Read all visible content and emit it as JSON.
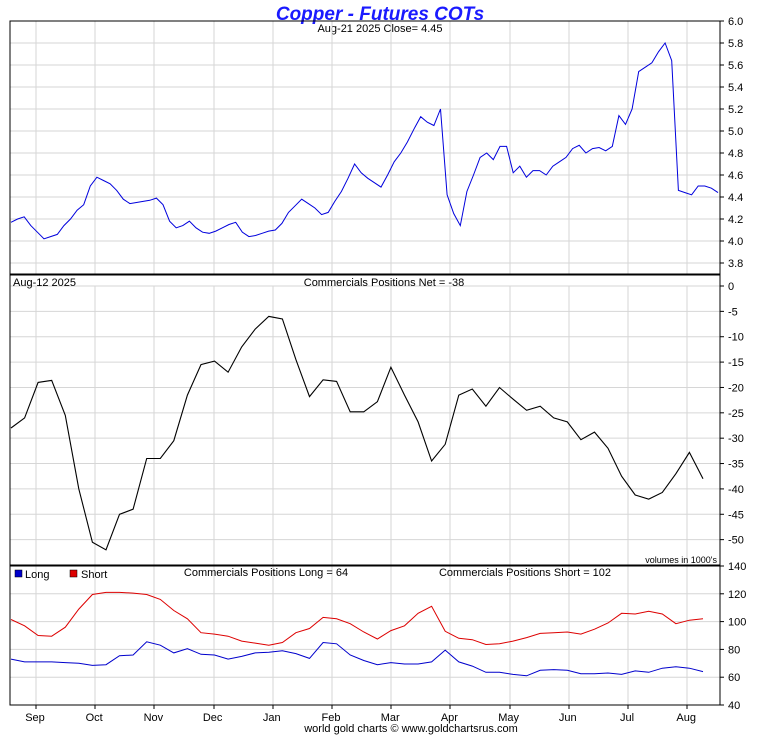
{
  "header": {
    "title": "Copper - Futures COTs",
    "subtitle": "Aug-21  2025   Close= 4.45",
    "credit": "world gold charts © www.goldchartsrus.com"
  },
  "panel2": {
    "date_label": "Aug-12  2025",
    "net_label": "Commercials Positions Net = -38",
    "units_note": "volumes in 1000's"
  },
  "panel3": {
    "legend_long": "Long",
    "legend_short": "Short",
    "long_label": "Commercials Positions Long = 64",
    "short_label": "Commercials Positions Short = 102"
  },
  "colors": {
    "price": "#0000dd",
    "net": "#000000",
    "long": "#0000cc",
    "short": "#dd0000",
    "title": "#1a1aff"
  },
  "chart_data": [
    {
      "type": "line",
      "series": [
        {
          "name": "Copper",
          "values": [
            [
              0,
              4.17
            ],
            [
              1,
              4.2
            ],
            [
              2,
              4.22
            ],
            [
              3,
              4.14
            ],
            [
              4,
              4.08
            ],
            [
              5,
              4.02
            ],
            [
              6,
              4.04
            ],
            [
              7,
              4.06
            ],
            [
              8,
              4.14
            ],
            [
              9,
              4.2
            ],
            [
              10,
              4.28
            ],
            [
              11,
              4.33
            ],
            [
              12,
              4.5
            ],
            [
              13,
              4.58
            ],
            [
              14,
              4.55
            ],
            [
              15,
              4.52
            ],
            [
              16,
              4.46
            ],
            [
              17,
              4.38
            ],
            [
              18,
              4.34
            ],
            [
              19,
              4.35
            ],
            [
              20,
              4.36
            ],
            [
              21,
              4.37
            ],
            [
              22,
              4.39
            ],
            [
              23,
              4.33
            ],
            [
              24,
              4.18
            ],
            [
              25,
              4.12
            ],
            [
              26,
              4.14
            ],
            [
              27,
              4.18
            ],
            [
              28,
              4.12
            ],
            [
              29,
              4.08
            ],
            [
              30,
              4.07
            ],
            [
              31,
              4.09
            ],
            [
              32,
              4.12
            ],
            [
              33,
              4.15
            ],
            [
              34,
              4.17
            ],
            [
              35,
              4.08
            ],
            [
              36,
              4.04
            ],
            [
              37,
              4.05
            ],
            [
              38,
              4.07
            ],
            [
              39,
              4.09
            ],
            [
              40,
              4.1
            ],
            [
              41,
              4.16
            ],
            [
              42,
              4.26
            ],
            [
              43,
              4.32
            ],
            [
              44,
              4.38
            ],
            [
              45,
              4.34
            ],
            [
              46,
              4.3
            ],
            [
              47,
              4.24
            ],
            [
              48,
              4.26
            ],
            [
              49,
              4.36
            ],
            [
              50,
              4.45
            ],
            [
              51,
              4.57
            ],
            [
              52,
              4.7
            ],
            [
              53,
              4.62
            ],
            [
              54,
              4.57
            ],
            [
              55,
              4.53
            ],
            [
              56,
              4.49
            ],
            [
              57,
              4.6
            ],
            [
              58,
              4.72
            ],
            [
              59,
              4.8
            ],
            [
              60,
              4.9
            ],
            [
              61,
              5.02
            ],
            [
              62,
              5.13
            ],
            [
              63,
              5.08
            ],
            [
              64,
              5.05
            ],
            [
              65,
              5.2
            ],
            [
              66,
              4.42
            ],
            [
              67,
              4.25
            ],
            [
              68,
              4.14
            ],
            [
              69,
              4.45
            ],
            [
              70,
              4.6
            ],
            [
              71,
              4.76
            ],
            [
              72,
              4.8
            ],
            [
              73,
              4.74
            ],
            [
              74,
              4.86
            ],
            [
              75,
              4.86
            ],
            [
              76,
              4.62
            ],
            [
              77,
              4.68
            ],
            [
              78,
              4.58
            ],
            [
              79,
              4.64
            ],
            [
              80,
              4.64
            ],
            [
              81,
              4.6
            ],
            [
              82,
              4.68
            ],
            [
              83,
              4.72
            ],
            [
              84,
              4.76
            ],
            [
              85,
              4.84
            ],
            [
              86,
              4.87
            ],
            [
              87,
              4.8
            ],
            [
              88,
              4.84
            ],
            [
              89,
              4.85
            ],
            [
              90,
              4.82
            ],
            [
              91,
              4.86
            ],
            [
              92,
              5.14
            ],
            [
              93,
              5.06
            ],
            [
              94,
              5.2
            ],
            [
              95,
              5.54
            ],
            [
              96,
              5.58
            ],
            [
              97,
              5.62
            ],
            [
              98,
              5.72
            ],
            [
              99,
              5.8
            ],
            [
              100,
              5.64
            ],
            [
              101,
              4.46
            ],
            [
              102,
              4.44
            ],
            [
              103,
              4.42
            ],
            [
              104,
              4.5
            ],
            [
              105,
              4.5
            ],
            [
              106,
              4.48
            ],
            [
              107,
              4.44
            ]
          ]
        }
      ],
      "ylim": [
        3.7,
        6.0
      ],
      "yticks": [
        "3.8",
        "4.0",
        "4.2",
        "4.4",
        "4.6",
        "4.8",
        "5.0",
        "5.2",
        "5.4",
        "5.6",
        "5.8",
        "6.0"
      ]
    },
    {
      "type": "line",
      "series": [
        {
          "name": "Net",
          "values": [
            [
              0,
              -28
            ],
            [
              1,
              -26
            ],
            [
              2,
              -19
            ],
            [
              3,
              -18.6
            ],
            [
              4,
              -25.5
            ],
            [
              5,
              -40
            ],
            [
              6,
              -50.5
            ],
            [
              7,
              -52
            ],
            [
              8,
              -45
            ],
            [
              9,
              -44
            ],
            [
              10,
              -34
            ],
            [
              11,
              -34
            ],
            [
              12,
              -30.5
            ],
            [
              13,
              -21.5
            ],
            [
              14,
              -15.5
            ],
            [
              15,
              -14.8
            ],
            [
              16,
              -17
            ],
            [
              17,
              -12
            ],
            [
              18,
              -8.5
            ],
            [
              19,
              -6
            ],
            [
              20,
              -6.5
            ],
            [
              21,
              -14.5
            ],
            [
              22,
              -21.8
            ],
            [
              23,
              -18.5
            ],
            [
              24,
              -18.8
            ],
            [
              25,
              -24.8
            ],
            [
              26,
              -24.8
            ],
            [
              27,
              -22.8
            ],
            [
              28,
              -16
            ],
            [
              29,
              -21.5
            ],
            [
              30,
              -26.8
            ],
            [
              31,
              -34.5
            ],
            [
              32,
              -31.2
            ],
            [
              33,
              -21.5
            ],
            [
              34,
              -20.3
            ],
            [
              35,
              -23.7
            ],
            [
              36,
              -20
            ],
            [
              37,
              -22.3
            ],
            [
              38,
              -24.5
            ],
            [
              39,
              -23.7
            ],
            [
              40,
              -26
            ],
            [
              41,
              -26.8
            ],
            [
              42,
              -30.3
            ],
            [
              43,
              -28.8
            ],
            [
              44,
              -32
            ],
            [
              45,
              -37.5
            ],
            [
              46,
              -41.2
            ],
            [
              47,
              -42
            ],
            [
              48,
              -40.7
            ],
            [
              49,
              -37
            ],
            [
              50,
              -32.8
            ],
            [
              51,
              -38
            ]
          ]
        }
      ],
      "ylim": [
        -55,
        0
      ],
      "yticks": [
        "0",
        "-5",
        "-10",
        "-15",
        "-20",
        "-25",
        "-30",
        "-35",
        "-40",
        "-45",
        "-50"
      ]
    },
    {
      "type": "line",
      "categories": [
        "Sep",
        "Oct",
        "Nov",
        "Dec",
        "Jan",
        "Feb",
        "Mar",
        "Apr",
        "May",
        "Jun",
        "Jul",
        "Aug"
      ],
      "series": [
        {
          "name": "Long",
          "values": [
            [
              0,
              73
            ],
            [
              1,
              71
            ],
            [
              2,
              71
            ],
            [
              3,
              71
            ],
            [
              4,
              70.5
            ],
            [
              5,
              70
            ],
            [
              6,
              68.5
            ],
            [
              7,
              69
            ],
            [
              8,
              75.5
            ],
            [
              9,
              76
            ],
            [
              10,
              85.5
            ],
            [
              11,
              83
            ],
            [
              12,
              77.5
            ],
            [
              13,
              80.5
            ],
            [
              14,
              76.5
            ],
            [
              15,
              76
            ],
            [
              16,
              73
            ],
            [
              17,
              75
            ],
            [
              18,
              77.5
            ],
            [
              19,
              78
            ],
            [
              20,
              79
            ],
            [
              21,
              77
            ],
            [
              22,
              73.5
            ],
            [
              23,
              85
            ],
            [
              24,
              84
            ],
            [
              25,
              76
            ],
            [
              26,
              72
            ],
            [
              27,
              69
            ],
            [
              28,
              70.5
            ],
            [
              29,
              69.5
            ],
            [
              30,
              69.5
            ],
            [
              31,
              71
            ],
            [
              32,
              79.5
            ],
            [
              33,
              71
            ],
            [
              34,
              68
            ],
            [
              35,
              63.5
            ],
            [
              36,
              63.5
            ],
            [
              37,
              62
            ],
            [
              38,
              61
            ],
            [
              39,
              65
            ],
            [
              40,
              65.5
            ],
            [
              41,
              65
            ],
            [
              42,
              62.5
            ],
            [
              43,
              62.5
            ],
            [
              44,
              63
            ],
            [
              45,
              62
            ],
            [
              46,
              64.5
            ],
            [
              47,
              63.5
            ],
            [
              48,
              66.5
            ],
            [
              49,
              67.5
            ],
            [
              50,
              66.5
            ],
            [
              51,
              64
            ]
          ]
        },
        {
          "name": "Short",
          "values": [
            [
              0,
              101.5
            ],
            [
              1,
              97
            ],
            [
              2,
              90
            ],
            [
              3,
              89.5
            ],
            [
              4,
              96
            ],
            [
              5,
              109
            ],
            [
              6,
              119.5
            ],
            [
              7,
              121
            ],
            [
              8,
              121
            ],
            [
              9,
              120.5
            ],
            [
              10,
              119.5
            ],
            [
              11,
              116
            ],
            [
              12,
              108
            ],
            [
              13,
              102
            ],
            [
              14,
              92
            ],
            [
              15,
              91
            ],
            [
              16,
              89.5
            ],
            [
              17,
              86
            ],
            [
              18,
              84.5
            ],
            [
              19,
              83
            ],
            [
              20,
              85
            ],
            [
              21,
              92
            ],
            [
              22,
              95
            ],
            [
              23,
              103
            ],
            [
              24,
              102
            ],
            [
              25,
              98.5
            ],
            [
              26,
              92.5
            ],
            [
              27,
              87.5
            ],
            [
              28,
              93.5
            ],
            [
              29,
              97
            ],
            [
              30,
              106
            ],
            [
              31,
              111
            ],
            [
              32,
              93
            ],
            [
              33,
              88
            ],
            [
              34,
              87
            ],
            [
              35,
              83.5
            ],
            [
              36,
              84
            ],
            [
              37,
              86
            ],
            [
              38,
              88.5
            ],
            [
              39,
              91.5
            ],
            [
              40,
              92
            ],
            [
              41,
              92.5
            ],
            [
              42,
              91
            ],
            [
              43,
              94.5
            ],
            [
              44,
              99
            ],
            [
              45,
              106
            ],
            [
              46,
              105.5
            ],
            [
              47,
              107.5
            ],
            [
              48,
              105.5
            ],
            [
              49,
              98.5
            ],
            [
              50,
              101
            ],
            [
              51,
              102
            ]
          ]
        }
      ],
      "ylim": [
        40,
        140
      ],
      "yticks": [
        "40",
        "60",
        "80",
        "100",
        "120",
        "140"
      ]
    }
  ]
}
